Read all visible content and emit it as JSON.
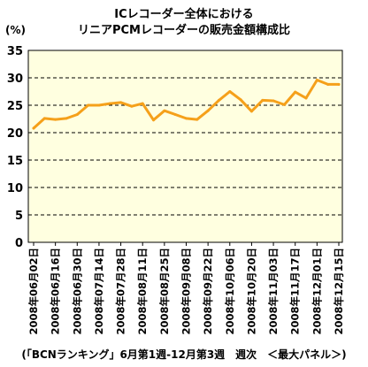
{
  "chart_data": {
    "type": "line",
    "title": [
      "ICレコーダー全体における",
      "リニアPCMレコーダーの販売金額構成比"
    ],
    "ylabel": "(%)",
    "footnote": "(「BCNランキング」6月第1週-12月第3週　週次　＜最大パネル＞)",
    "ylim": [
      0,
      35
    ],
    "yticks": [
      0,
      5,
      10,
      15,
      20,
      25,
      30,
      35
    ],
    "grid": true,
    "x_ticklabels": [
      "2008年06月02日",
      "2008年06月16日",
      "2008年06月30日",
      "2008年07月14日",
      "2008年07月28日",
      "2008年08月11日",
      "2008年08月25日",
      "2008年09月08日",
      "2008年09月22日",
      "2008年10月06日",
      "2008年10月20日",
      "2008年11月03日",
      "2008年11月17日",
      "2008年12月01日",
      "2008年12月15日"
    ],
    "series": [
      {
        "name": "",
        "color": "#f5a01a",
        "values": [
          20.8,
          22.6,
          22.4,
          22.6,
          23.3,
          25.0,
          25.0,
          25.3,
          25.5,
          24.8,
          25.3,
          22.3,
          24.0,
          23.3,
          22.6,
          22.4,
          24.0,
          25.9,
          27.5,
          26.0,
          23.9,
          25.9,
          25.8,
          25.1,
          27.4,
          26.3,
          29.6,
          28.8,
          28.8
        ]
      }
    ]
  }
}
